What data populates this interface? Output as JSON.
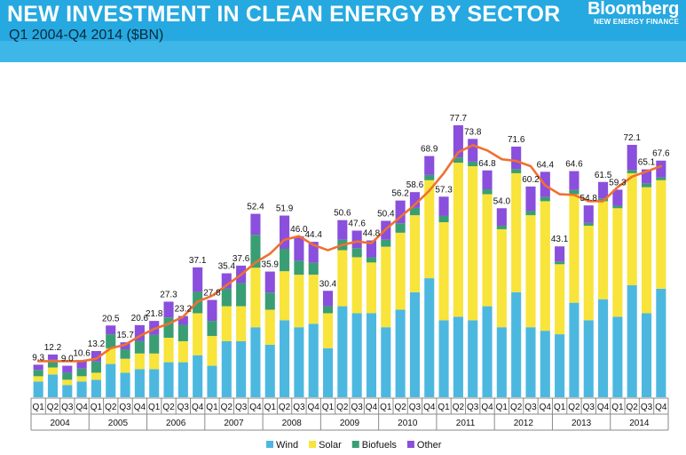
{
  "header": {
    "title": "NEW INVESTMENT IN CLEAN ENERGY BY SECTOR",
    "subtitle": "Q1 2004-Q4 2014 ($BN)",
    "logo_main": "Bloomberg",
    "logo_sub": "NEW ENERGY FINANCE"
  },
  "colors": {
    "wind": "#4cb8e0",
    "solar": "#f8e43a",
    "biofuels": "#3a9e74",
    "other": "#8a4fdc",
    "trend": "#f07030",
    "header_bg": "#26a9e0"
  },
  "chart_data": {
    "type": "bar",
    "stacked": true,
    "title": "NEW INVESTMENT IN CLEAN ENERGY BY SECTOR",
    "subtitle": "Q1 2004-Q4 2014 ($BN)",
    "ylim": [
      0,
      82
    ],
    "grid": false,
    "legend_position": "bottom",
    "quarters": [
      "Q1",
      "Q2",
      "Q3",
      "Q4",
      "Q1",
      "Q2",
      "Q3",
      "Q4",
      "Q1",
      "Q2",
      "Q3",
      "Q4",
      "Q1",
      "Q2",
      "Q3",
      "Q4",
      "Q1",
      "Q2",
      "Q3",
      "Q4",
      "Q1",
      "Q2",
      "Q3",
      "Q4",
      "Q1",
      "Q2",
      "Q3",
      "Q4",
      "Q1",
      "Q2",
      "Q3",
      "Q4",
      "Q1",
      "Q2",
      "Q3",
      "Q4",
      "Q1",
      "Q2",
      "Q3",
      "Q4",
      "Q1",
      "Q2",
      "Q3",
      "Q4"
    ],
    "years": [
      "2004",
      "2005",
      "2006",
      "2007",
      "2008",
      "2009",
      "2010",
      "2011",
      "2012",
      "2013",
      "2014"
    ],
    "totals": [
      9.3,
      12.2,
      9.0,
      10.6,
      13.2,
      20.5,
      15.7,
      20.6,
      21.8,
      27.3,
      23.2,
      37.1,
      27.8,
      35.4,
      37.6,
      52.4,
      35.9,
      51.9,
      46.0,
      44.4,
      30.4,
      50.6,
      47.6,
      44.8,
      50.4,
      56.2,
      58.6,
      68.9,
      57.3,
      77.7,
      73.8,
      64.8,
      54.0,
      71.6,
      60.2,
      64.4,
      43.1,
      64.6,
      54.8,
      61.5,
      59.3,
      72.1,
      65.1,
      67.6
    ],
    "total_labels": [
      "9.3",
      "12.2",
      "9.0",
      "10.6",
      "13.2",
      "20.5",
      "15.7",
      "20.6",
      "21.8",
      "27.3",
      "23.2",
      "37.1",
      "27.8",
      "35.4",
      "37.6",
      "52.4",
      "35.9",
      "51.9",
      "46.0",
      "44.4",
      "30.4",
      "50.6",
      "47.6",
      "44.8",
      "50.4",
      "56.2",
      "58.6",
      "68.9",
      "57.3",
      "77.7",
      "73.8",
      "64.8",
      "54.0",
      "71.6",
      "60.2",
      "64.4",
      "43.1",
      "64.6",
      "54.8",
      "61.5",
      "59.3",
      "72.1",
      "65.1",
      "67.6"
    ],
    "series": [
      {
        "name": "Wind",
        "values": [
          4.5,
          6.5,
          3.5,
          4.5,
          5.0,
          9.5,
          7.0,
          8.0,
          8.0,
          10.0,
          10.0,
          12.0,
          9.0,
          16.0,
          16.0,
          20.0,
          15.0,
          22.0,
          20.0,
          21.0,
          14.0,
          26.0,
          24.0,
          24.0,
          20.0,
          25.0,
          30.0,
          34.0,
          22.0,
          23.0,
          22.0,
          26.0,
          20.0,
          30.0,
          20.0,
          19.0,
          18.0,
          27.0,
          22.0,
          28.0,
          23.0,
          32.0,
          24.0,
          31.0
        ]
      },
      {
        "name": "Solar",
        "values": [
          1.5,
          2.0,
          1.5,
          1.5,
          2.0,
          4.5,
          4.0,
          4.5,
          4.5,
          7.0,
          6.0,
          12.0,
          8.5,
          10.0,
          10.0,
          17.0,
          10.0,
          14.0,
          15.0,
          14.0,
          10.0,
          16.0,
          16.0,
          14.5,
          23.0,
          22.0,
          22.0,
          28.0,
          28.0,
          44.0,
          44.0,
          32.0,
          28.0,
          34.0,
          32.0,
          37.0,
          20.0,
          31.0,
          27.0,
          28.0,
          31.0,
          32.0,
          36.0,
          31.0
        ]
      },
      {
        "name": "Biofuels",
        "values": [
          1.8,
          2.2,
          2.0,
          2.2,
          3.2,
          4.0,
          2.7,
          3.6,
          5.3,
          5.8,
          4.7,
          6.1,
          4.3,
          5.0,
          6.6,
          9.4,
          4.9,
          6.4,
          4.0,
          3.4,
          2.0,
          3.0,
          2.6,
          1.5,
          2.0,
          2.7,
          2.1,
          1.5,
          1.8,
          1.5,
          1.3,
          1.4,
          1.0,
          1.2,
          1.2,
          1.2,
          0.8,
          1.2,
          0.8,
          0.8,
          0.7,
          0.9,
          1.1,
          0.8
        ]
      },
      {
        "name": "Other",
        "values": [
          1.5,
          1.5,
          2.0,
          2.4,
          3.0,
          2.5,
          2.0,
          4.5,
          4.0,
          4.5,
          2.5,
          7.0,
          6.0,
          4.4,
          5.0,
          6.0,
          6.0,
          9.5,
          7.0,
          6.0,
          4.4,
          5.6,
          5.0,
          4.8,
          5.4,
          6.5,
          4.5,
          5.4,
          5.5,
          9.2,
          6.5,
          5.4,
          5.0,
          6.4,
          7.0,
          7.2,
          4.3,
          5.4,
          5.0,
          4.7,
          4.6,
          7.2,
          4.0,
          4.8
        ]
      }
    ],
    "trend": {
      "name": "",
      "values": [
        10.3,
        10.3,
        10.3,
        10.3,
        11.0,
        14.0,
        15.0,
        17.5,
        19.5,
        21.0,
        23.0,
        27.3,
        29.0,
        32.0,
        35.0,
        38.5,
        41.0,
        45.0,
        46.0,
        43.5,
        42.0,
        43.5,
        44.5,
        44.0,
        48.0,
        51.5,
        55.0,
        59.0,
        64.0,
        70.0,
        72.0,
        70.5,
        68.0,
        67.5,
        66.0,
        60.5,
        58.0,
        57.8,
        56.0,
        56.0,
        60.0,
        63.0,
        64.5,
        66.0
      ]
    }
  }
}
